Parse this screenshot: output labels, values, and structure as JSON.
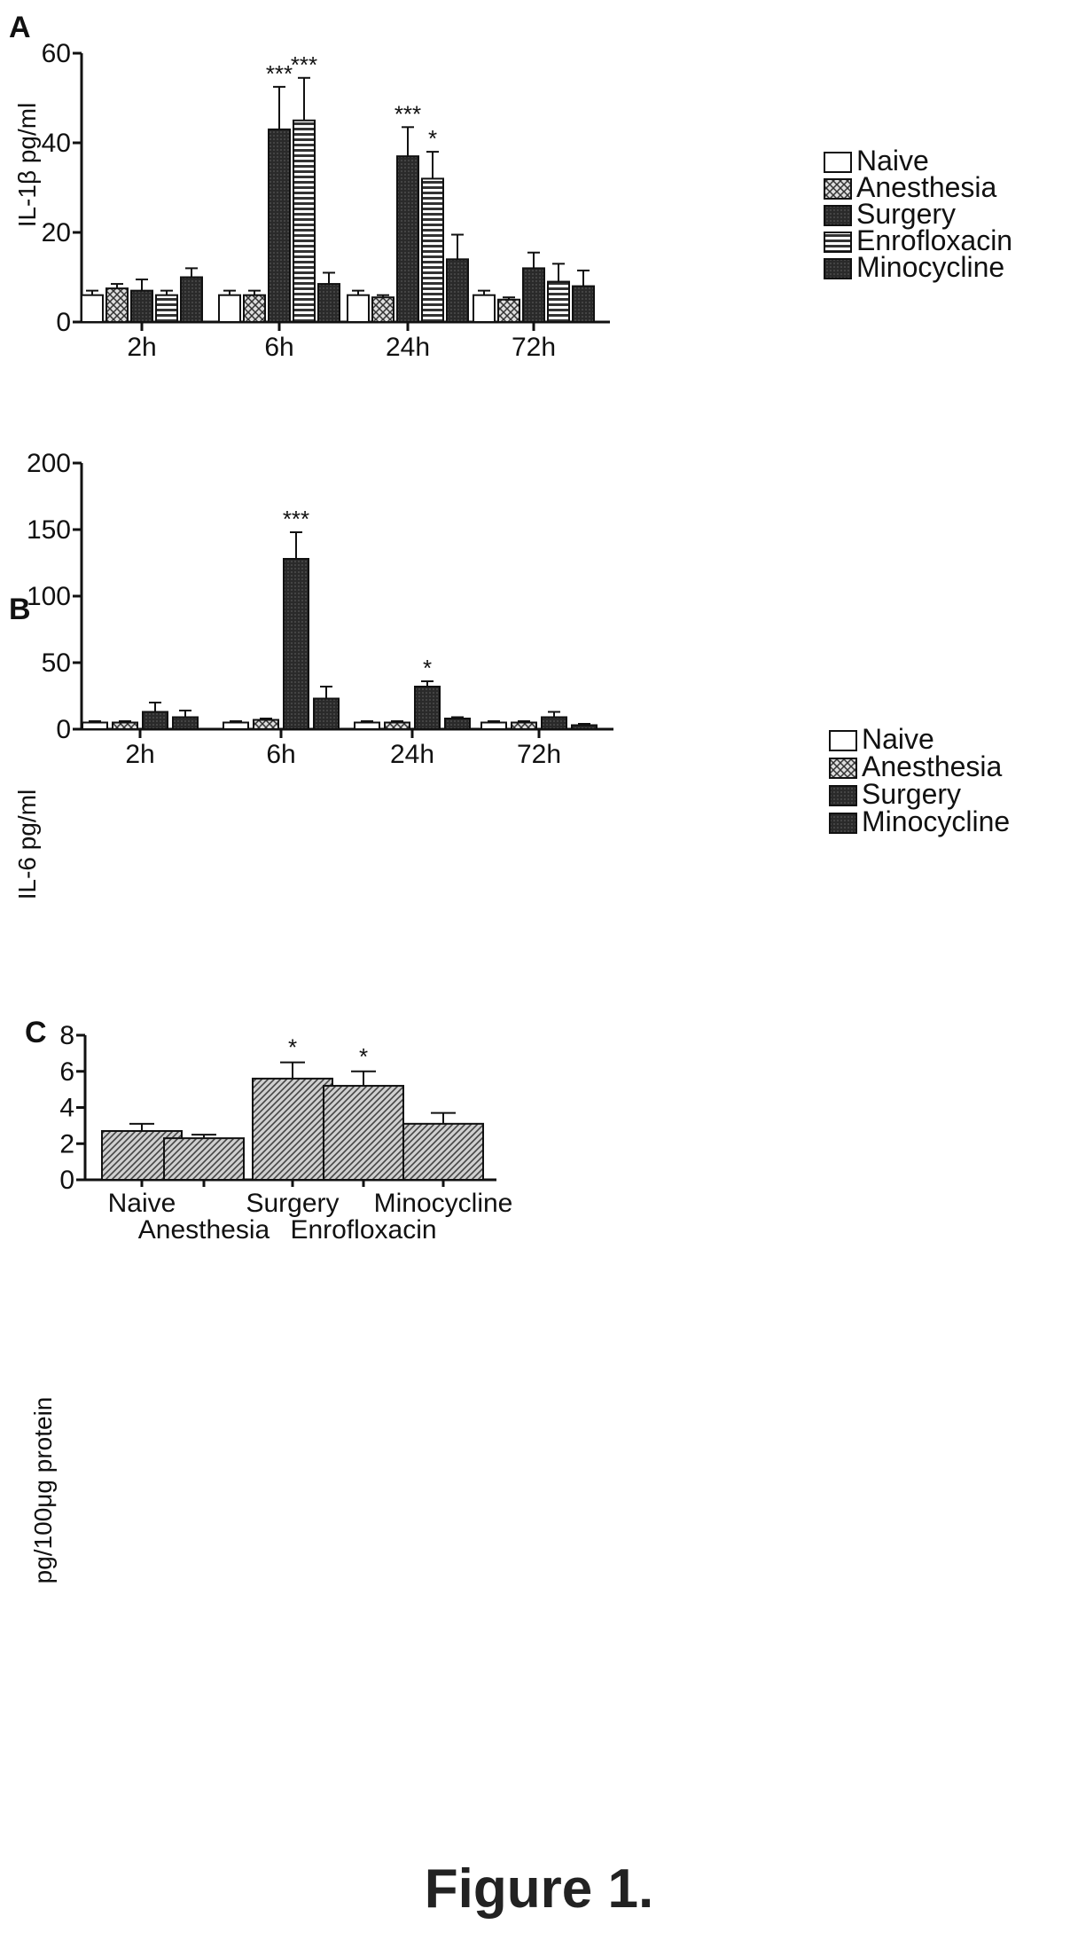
{
  "figure_caption": "Figure 1.",
  "colors": {
    "dark_fill": "#2a2a2a",
    "cross_fill": "#888888",
    "hatch_fill": "#555555",
    "axis": "#111111"
  },
  "chart_data": [
    {
      "panel": "A",
      "type": "bar",
      "ylabel": "IL-1β pg/ml",
      "ylim": [
        0,
        60
      ],
      "yticks": [
        "0",
        "20",
        "40",
        "60"
      ],
      "categories": [
        "2h",
        "6h",
        "24h",
        "72h"
      ],
      "legend_position": "right",
      "series": [
        {
          "name": "Naive",
          "pattern": "open",
          "values": [
            6,
            6,
            6,
            6
          ],
          "errors": [
            1,
            1,
            1,
            1
          ],
          "sig": [
            "",
            "",
            "",
            ""
          ]
        },
        {
          "name": "Anesthesia",
          "pattern": "cross",
          "values": [
            7.5,
            6,
            5.5,
            5
          ],
          "errors": [
            1,
            1,
            0.5,
            0.5
          ],
          "sig": [
            "",
            "",
            "",
            ""
          ]
        },
        {
          "name": "Surgery",
          "pattern": "dark",
          "values": [
            7,
            43,
            37,
            12
          ],
          "errors": [
            2.5,
            9.5,
            6.5,
            3.5
          ],
          "sig": [
            "",
            "***",
            "***",
            ""
          ]
        },
        {
          "name": "Enrofloxacin",
          "pattern": "hstripe",
          "values": [
            6,
            45,
            32,
            9
          ],
          "errors": [
            1,
            9.5,
            6,
            4
          ],
          "sig": [
            "",
            "***",
            "*",
            ""
          ]
        },
        {
          "name": "Minocycline",
          "pattern": "dark",
          "values": [
            10,
            8.5,
            14,
            8
          ],
          "errors": [
            2,
            2.5,
            5.5,
            3.5
          ],
          "sig": [
            "",
            "",
            "",
            ""
          ]
        }
      ]
    },
    {
      "panel": "B",
      "type": "bar",
      "ylabel": "IL-6 pg/ml",
      "ylim": [
        0,
        200
      ],
      "yticks": [
        "0",
        "50",
        "100",
        "150",
        "200"
      ],
      "categories": [
        "2h",
        "6h",
        "24h",
        "72h"
      ],
      "legend_position": "right",
      "series": [
        {
          "name": "Naive",
          "pattern": "open",
          "values": [
            5,
            5,
            5,
            5
          ],
          "errors": [
            1,
            1,
            1,
            1
          ],
          "sig": [
            "",
            "",
            "",
            ""
          ]
        },
        {
          "name": "Anesthesia",
          "pattern": "cross",
          "values": [
            5,
            7,
            5,
            5
          ],
          "errors": [
            1,
            1,
            1,
            1
          ],
          "sig": [
            "",
            "",
            "",
            ""
          ]
        },
        {
          "name": "Surgery",
          "pattern": "dark",
          "values": [
            13,
            128,
            32,
            9
          ],
          "errors": [
            7,
            20,
            4,
            4
          ],
          "sig": [
            "",
            "***",
            "*",
            ""
          ]
        },
        {
          "name": "Minocycline",
          "pattern": "dark",
          "values": [
            9,
            23,
            8,
            3
          ],
          "errors": [
            5,
            9,
            1,
            1
          ],
          "sig": [
            "",
            "",
            "",
            ""
          ]
        }
      ]
    },
    {
      "panel": "C",
      "type": "bar",
      "ylabel": "pg/100μg protein",
      "ylim": [
        0,
        8
      ],
      "yticks": [
        "0",
        "2",
        "4",
        "6",
        "8"
      ],
      "categories": [
        "Naive",
        "Anesthesia",
        "Surgery",
        "Enrofloxacin",
        "Minocycline"
      ],
      "values": [
        2.7,
        2.3,
        5.6,
        5.2,
        3.1
      ],
      "errors": [
        0.4,
        0.2,
        0.9,
        0.8,
        0.6
      ],
      "sig": [
        "",
        "",
        "*",
        "*",
        ""
      ]
    }
  ]
}
